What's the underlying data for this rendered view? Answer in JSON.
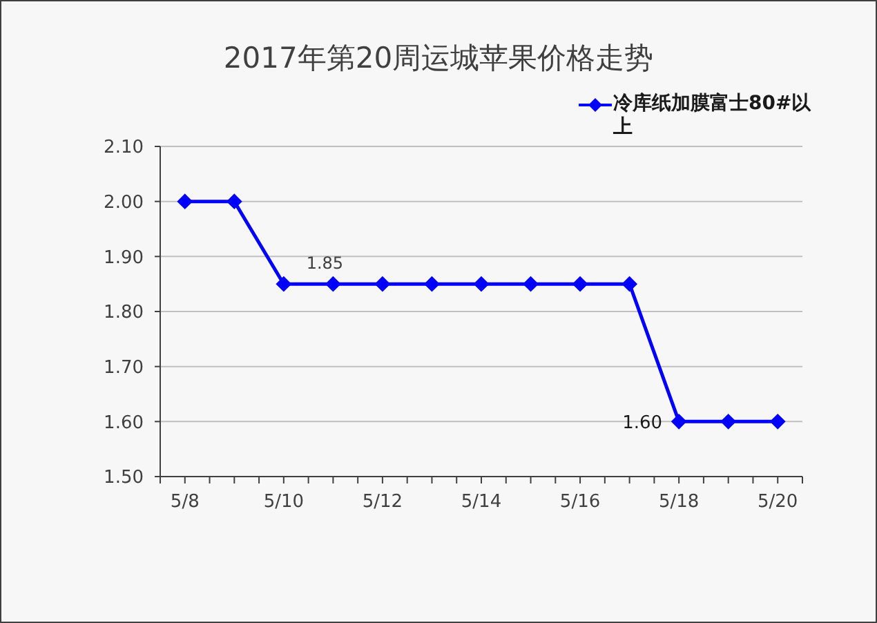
{
  "chart_data": {
    "type": "line",
    "title": "2017年第20周运城苹果价格走势",
    "categories": [
      "5/8",
      null,
      "5/10",
      null,
      "5/12",
      null,
      "5/14",
      null,
      "5/16",
      null,
      "5/18",
      null,
      "5/20"
    ],
    "series": [
      {
        "name": "冷库纸加膜富士80#以上",
        "color": "#0000ff",
        "values": [
          2.0,
          2.0,
          1.85,
          1.85,
          1.85,
          1.85,
          1.85,
          1.85,
          1.85,
          1.85,
          1.6,
          1.6,
          1.6
        ],
        "value_labels": [
          null,
          null,
          null,
          "1.85",
          null,
          null,
          null,
          null,
          null,
          null,
          "1.60",
          null,
          null
        ]
      }
    ],
    "ylim": [
      1.5,
      2.1
    ],
    "yticks": [
      {
        "value": 1.5,
        "label": "1.50"
      },
      {
        "value": 1.6,
        "label": "1.60"
      },
      {
        "value": 1.7,
        "label": "1.70"
      },
      {
        "value": 1.8,
        "label": "1.80"
      },
      {
        "value": 1.9,
        "label": "1.90"
      },
      {
        "value": 2.0,
        "label": "2.00"
      },
      {
        "value": 2.1,
        "label": "2.10"
      }
    ],
    "grid": "y",
    "legend": "top right",
    "marker": "diamond",
    "line_style": "solid"
  }
}
